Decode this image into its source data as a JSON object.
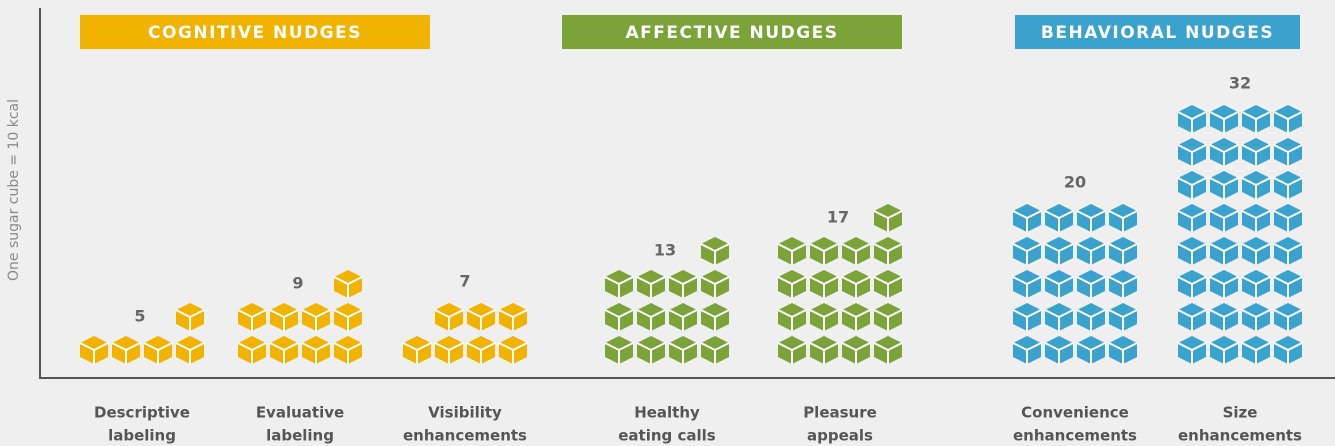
{
  "chart_data": {
    "type": "pictogram",
    "y_label": "One sugar cube = 10 kcal",
    "series": [
      {
        "name": "COGNITIVE NUDGES",
        "color": "#f1b300",
        "categories": [
          [
            "Descriptive",
            "labeling"
          ],
          [
            "Evaluative",
            "labeling"
          ],
          [
            "Visibility",
            "enhancements"
          ]
        ],
        "values": [
          5,
          9,
          7
        ]
      },
      {
        "name": "AFFECTIVE NUDGES",
        "color": "#7ca33a",
        "categories": [
          [
            "Healthy",
            "eating calls"
          ],
          [
            "Pleasure",
            "appeals"
          ]
        ],
        "values": [
          13,
          17
        ]
      },
      {
        "name": "BEHAVIORAL NUDGES",
        "color": "#3aa2cd",
        "categories": [
          [
            "Convenience",
            "enhancements"
          ],
          [
            "Size",
            "enhancements"
          ]
        ],
        "values": [
          20,
          32
        ]
      }
    ]
  }
}
